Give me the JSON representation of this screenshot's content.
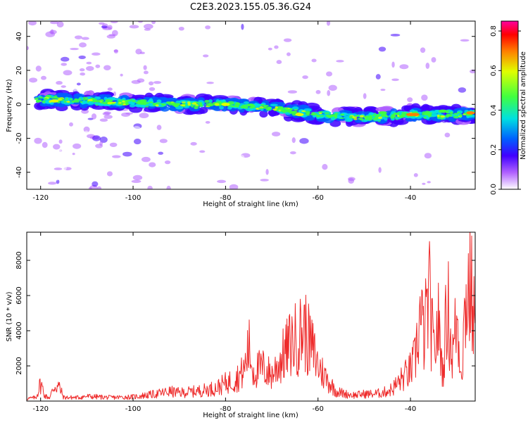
{
  "title": "C2E3.2023.155.05.36.G24",
  "chart_data": [
    {
      "type": "heatmap",
      "xlabel": "Height of straight line (km)",
      "ylabel": "Frequency (Hz)",
      "xlim": [
        -123,
        -26
      ],
      "ylim": [
        -50,
        49
      ],
      "xticks": [
        -120,
        -100,
        -80,
        -60,
        -40
      ],
      "yticks": [
        -40,
        -20,
        0,
        20,
        40
      ],
      "colorbar": {
        "label": "Normalized spectral amplitude",
        "range": [
          0,
          0.85
        ],
        "ticks": [
          0.0,
          0.2,
          0.4,
          0.6,
          0.8
        ]
      },
      "ridge": {
        "x": [
          -123,
          -110,
          -100,
          -90,
          -80,
          -70,
          -60,
          -50,
          -40,
          -30,
          -26
        ],
        "y": [
          3,
          2,
          1,
          0,
          0,
          -2,
          -6,
          -8,
          -6,
          -6,
          -5
        ]
      }
    },
    {
      "type": "line",
      "xlabel": "Height of straight line (km)",
      "ylabel": "SNR (10 * v/v)",
      "xlim": [
        -123,
        -26
      ],
      "ylim": [
        0,
        9600
      ],
      "xticks": [
        -120,
        -100,
        -80,
        -60,
        -40
      ],
      "yticks": [
        2000,
        4000,
        6000,
        8000
      ],
      "color": "#ee2a2a",
      "x": [
        -123,
        -121,
        -120,
        -119,
        -118,
        -117,
        -116,
        -115,
        -112,
        -110,
        -105,
        -100,
        -97,
        -95,
        -92,
        -90,
        -87,
        -85,
        -82,
        -80,
        -78,
        -76,
        -75,
        -74,
        -72,
        -70,
        -68,
        -66,
        -64,
        -63,
        -62,
        -61,
        -60,
        -58,
        -56,
        -54,
        -52,
        -50,
        -48,
        -46,
        -44,
        -42,
        -41,
        -40,
        -39,
        -38,
        -37,
        -36,
        -35,
        -34,
        -33,
        -32,
        -31,
        -30,
        -29,
        -28,
        -27,
        -26
      ],
      "y": [
        200,
        300,
        1500,
        400,
        300,
        1300,
        1200,
        300,
        300,
        400,
        300,
        350,
        500,
        600,
        800,
        700,
        800,
        900,
        1100,
        1500,
        1800,
        2500,
        4600,
        2500,
        2800,
        2200,
        3500,
        4800,
        5500,
        6200,
        5000,
        4200,
        3000,
        1800,
        800,
        600,
        500,
        600,
        600,
        700,
        1000,
        1800,
        2200,
        2600,
        3500,
        7000,
        5500,
        9000,
        4000,
        6500,
        2500,
        8500,
        3500,
        7000,
        2500,
        8800,
        9600,
        6000
      ]
    }
  ]
}
